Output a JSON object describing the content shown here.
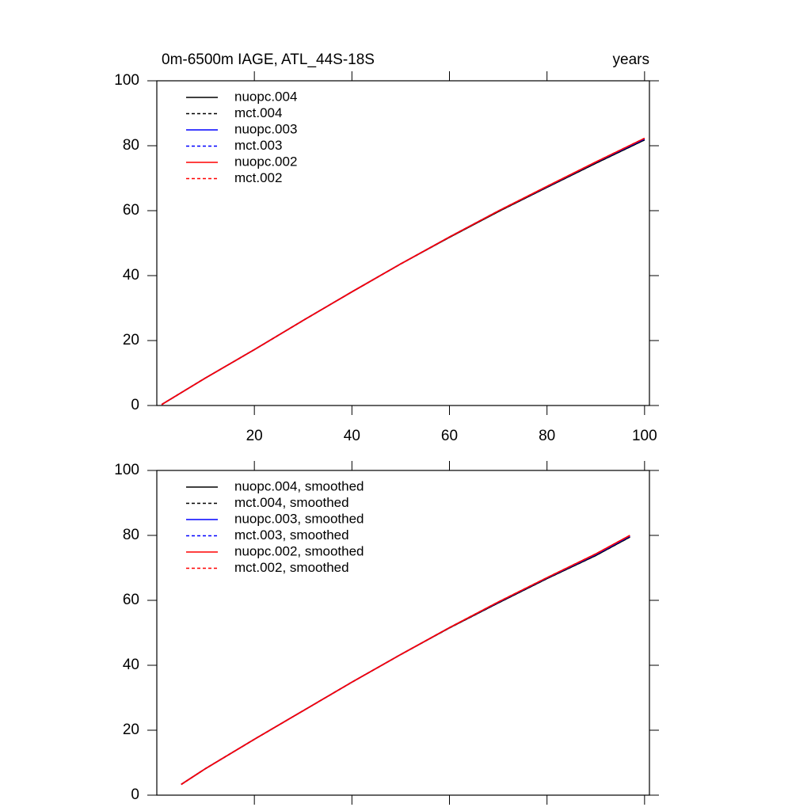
{
  "chart_data": [
    {
      "type": "line",
      "title": "0m-6500m IAGE, ATL_44S-18S",
      "units": "years",
      "x": [
        1,
        10,
        20,
        30,
        40,
        50,
        60,
        70,
        80,
        90,
        100
      ],
      "xlim": [
        0,
        101
      ],
      "xticks": [
        20,
        40,
        60,
        80,
        100
      ],
      "xtick_labels_shown": true,
      "ylim": [
        0,
        100
      ],
      "yticks": [
        0,
        20,
        40,
        60,
        80,
        100
      ],
      "legend": "upper left",
      "series": [
        {
          "name": "nuopc.004",
          "color": "#000000",
          "dash": false,
          "values": [
            0.3,
            8.5,
            17.2,
            26.2,
            35,
            43.6,
            51.8,
            59.7,
            67.2,
            74.6,
            81.8
          ]
        },
        {
          "name": "mct.004",
          "color": "#000000",
          "dash": true,
          "values": [
            0.3,
            8.5,
            17.2,
            26.2,
            35,
            43.6,
            51.8,
            59.7,
            67.2,
            74.6,
            81.8
          ]
        },
        {
          "name": "nuopc.003",
          "color": "#0000ff",
          "dash": false,
          "values": [
            0.3,
            8.5,
            17.2,
            26.2,
            35,
            43.6,
            51.9,
            59.9,
            67.4,
            74.9,
            82.1
          ]
        },
        {
          "name": "mct.003",
          "color": "#0000ff",
          "dash": true,
          "values": [
            0.3,
            8.5,
            17.2,
            26.2,
            35,
            43.6,
            51.9,
            59.9,
            67.4,
            74.9,
            82.1
          ]
        },
        {
          "name": "nuopc.002",
          "color": "#ff0000",
          "dash": false,
          "values": [
            0.3,
            8.5,
            17.2,
            26.2,
            35,
            43.6,
            51.9,
            59.9,
            67.5,
            75,
            82.3
          ]
        },
        {
          "name": "mct.002",
          "color": "#ff0000",
          "dash": true,
          "values": [
            0.3,
            8.5,
            17.2,
            26.2,
            35,
            43.6,
            51.9,
            59.9,
            67.5,
            75,
            82.3
          ]
        }
      ]
    },
    {
      "type": "line",
      "x": [
        5,
        10,
        20,
        30,
        40,
        50,
        60,
        70,
        80,
        90,
        97
      ],
      "xlim": [
        0,
        101
      ],
      "xticks": [
        20,
        40,
        60,
        80,
        100
      ],
      "xtick_labels_shown": false,
      "ylim": [
        0,
        100
      ],
      "yticks": [
        0,
        20,
        40,
        60,
        80,
        100
      ],
      "legend": "upper left",
      "series": [
        {
          "name": "nuopc.004, smoothed",
          "color": "#000000",
          "dash": false,
          "values": [
            3.3,
            8.2,
            17.2,
            26,
            34.8,
            43.3,
            51.5,
            59.2,
            66.7,
            73.8,
            79.5
          ]
        },
        {
          "name": "mct.004, smoothed",
          "color": "#000000",
          "dash": true,
          "values": [
            3.3,
            8.2,
            17.2,
            26,
            34.8,
            43.3,
            51.5,
            59.2,
            66.7,
            73.8,
            79.5
          ]
        },
        {
          "name": "nuopc.003, smoothed",
          "color": "#0000ff",
          "dash": false,
          "values": [
            3.3,
            8.2,
            17.2,
            26,
            34.8,
            43.3,
            51.6,
            59.4,
            66.9,
            74.1,
            79.8
          ]
        },
        {
          "name": "mct.003, smoothed",
          "color": "#0000ff",
          "dash": true,
          "values": [
            3.3,
            8.2,
            17.2,
            26,
            34.8,
            43.3,
            51.6,
            59.4,
            66.9,
            74.1,
            79.8
          ]
        },
        {
          "name": "nuopc.002, smoothed",
          "color": "#ff0000",
          "dash": false,
          "values": [
            3.3,
            8.2,
            17.2,
            26,
            34.8,
            43.3,
            51.6,
            59.5,
            67,
            74.3,
            80
          ]
        },
        {
          "name": "mct.002, smoothed",
          "color": "#ff0000",
          "dash": true,
          "values": [
            3.3,
            8.2,
            17.2,
            26,
            34.8,
            43.3,
            51.6,
            59.5,
            67,
            74.3,
            80
          ]
        }
      ]
    }
  ]
}
